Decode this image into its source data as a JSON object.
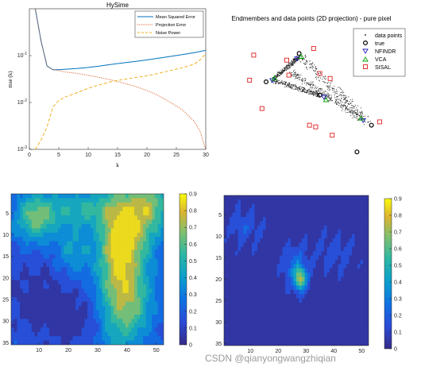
{
  "chart_data": [
    {
      "type": "line",
      "title": "HySime",
      "xlabel": "k",
      "ylabel": "mse (k)",
      "xlim": [
        0,
        30
      ],
      "ylim_log10": [
        -3,
        0
      ],
      "xticks": [
        "0",
        "5",
        "10",
        "15",
        "20",
        "25",
        "30"
      ],
      "yticks": [
        "10^-3",
        "10^-2",
        "10^-1"
      ],
      "x": [
        1,
        2,
        3,
        4,
        5,
        6,
        8,
        10,
        12,
        14,
        16,
        18,
        20,
        22,
        24,
        26,
        28,
        29,
        30
      ],
      "series": [
        {
          "name": "Mean Squared Error",
          "color": "#0072BD",
          "style": "solid",
          "values": [
            1.0,
            0.2,
            0.06,
            0.05,
            0.05,
            0.051,
            0.053,
            0.056,
            0.06,
            0.065,
            0.07,
            0.075,
            0.081,
            0.088,
            0.096,
            0.105,
            0.115,
            0.122,
            0.13
          ]
        },
        {
          "name": "Projection Error",
          "color": "#D95319",
          "style": "dotted",
          "values": [
            1.0,
            0.2,
            0.06,
            0.05,
            0.048,
            0.045,
            0.042,
            0.038,
            0.034,
            0.03,
            0.026,
            0.022,
            0.018,
            0.014,
            0.01,
            0.007,
            0.004,
            0.0025,
            0.001
          ]
        },
        {
          "name": "Noise Power",
          "color": "#EDB120",
          "style": "dashed",
          "values": [
            0.001,
            0.0016,
            0.003,
            0.008,
            0.011,
            0.013,
            0.016,
            0.02,
            0.024,
            0.028,
            0.031,
            0.034,
            0.037,
            0.042,
            0.048,
            0.055,
            0.065,
            0.08,
            0.11
          ]
        }
      ]
    },
    {
      "type": "scatter",
      "title": "Endmembers and data points (2D projection) - pure pixel",
      "legend": [
        "data points",
        "true",
        "NFINDR",
        "VCA",
        "SISAL"
      ],
      "legend_position": "top-right",
      "series": [
        {
          "name": "true",
          "marker": "o",
          "color": "#000000",
          "points": [
            [
              0.0,
              0.0
            ],
            [
              1.6,
              1.7
            ],
            [
              5.1,
              -2.6
            ],
            [
              4.4,
              -4.2
            ],
            [
              2.6,
              -0.8
            ]
          ]
        },
        {
          "name": "NFINDR",
          "marker": "v",
          "color": "#2020C0",
          "points": [
            [
              0.3,
              0.1
            ],
            [
              1.5,
              1.4
            ],
            [
              4.7,
              -2.3
            ],
            [
              2.8,
              -0.9
            ]
          ]
        },
        {
          "name": "VCA",
          "marker": "^",
          "color": "#00A000",
          "points": [
            [
              0.4,
              0.2
            ],
            [
              1.7,
              1.5
            ],
            [
              4.6,
              -2.2
            ],
            [
              2.9,
              -1.1
            ]
          ]
        },
        {
          "name": "SISAL",
          "marker": "s",
          "color": "#E02020",
          "points": [
            [
              -0.6,
              1.6
            ],
            [
              1.0,
              1.3
            ],
            [
              2.3,
              2.0
            ],
            [
              2.6,
              0.5
            ],
            [
              3.1,
              0.2
            ],
            [
              5.7,
              3.0
            ],
            [
              5.5,
              -2.4
            ],
            [
              -0.8,
              0.1
            ],
            [
              -0.2,
              -1.6
            ],
            [
              3.2,
              -3.2
            ],
            [
              2.4,
              -2.7
            ],
            [
              2.1,
              -2.6
            ],
            [
              1.1,
              0.4
            ]
          ]
        }
      ]
    },
    {
      "type": "heatmap",
      "title": "",
      "xticks": [
        "10",
        "20",
        "30",
        "40",
        "50"
      ],
      "yticks": [
        "5",
        "10",
        "15",
        "20",
        "25",
        "30",
        "35"
      ],
      "xlim": [
        1,
        52
      ],
      "ylim": [
        1,
        35
      ],
      "colorbar_ticks": [
        "0",
        "0.1",
        "0.2",
        "0.3",
        "0.4",
        "0.5",
        "0.6",
        "0.7",
        "0.8",
        "0.9"
      ],
      "clim": [
        0,
        0.9
      ],
      "colormap": "parula"
    },
    {
      "type": "heatmap",
      "title": "",
      "xticks": [
        "10",
        "20",
        "30",
        "40",
        "50"
      ],
      "yticks": [
        "5",
        "10",
        "15",
        "20",
        "25",
        "30",
        "35"
      ],
      "xlim": [
        1,
        52
      ],
      "ylim": [
        1,
        35
      ],
      "colorbar_ticks": [
        "0",
        "0.1",
        "0.2",
        "0.3",
        "0.4",
        "0.5",
        "0.6",
        "0.7",
        "0.8",
        "0.9"
      ],
      "clim": [
        0,
        0.9
      ],
      "colormap": "parula"
    }
  ],
  "watermark": "CSDN @qianyongwangzhiqian"
}
